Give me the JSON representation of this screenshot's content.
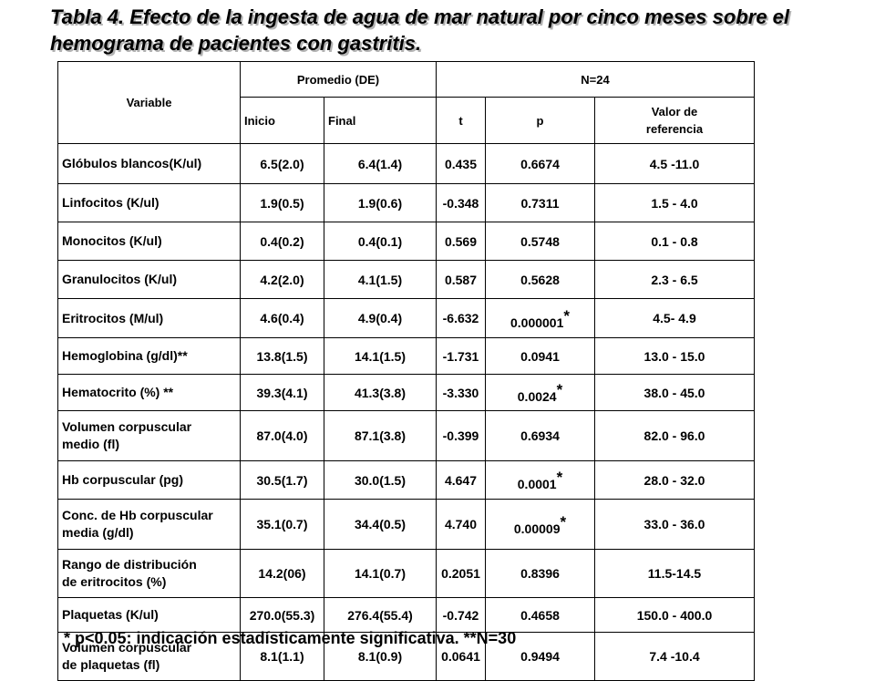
{
  "title": "Tabla 4. Efecto de la ingesta de agua de mar natural por cinco meses sobre el hemograma de pacientes con gastritis.",
  "headers": {
    "variable": "Variable",
    "promedio": "Promedio (DE)",
    "n": "N=24",
    "inicio": "Inicio",
    "final": "Final",
    "t": "t",
    "p": "p",
    "ref_line1": "Valor de",
    "ref_line2": "referencia"
  },
  "rows": [
    {
      "variable": [
        "Glóbulos blancos(K/ul)"
      ],
      "inicio": "6.5(2.0)",
      "final": "6.4(1.4)",
      "t": "0.435",
      "p": "0.6674",
      "star": "",
      "ref": "4.5 -11.0"
    },
    {
      "variable": [
        "Linfocitos (K/ul)"
      ],
      "inicio": "1.9(0.5)",
      "final": "1.9(0.6)",
      "t": "-0.348",
      "p": "0.7311",
      "star": "",
      "ref": "1.5 - 4.0"
    },
    {
      "variable": [
        "Monocitos (K/ul)"
      ],
      "inicio": "0.4(0.2)",
      "final": "0.4(0.1)",
      "t": "0.569",
      "p": "0.5748",
      "star": "",
      "ref": "0.1 - 0.8"
    },
    {
      "variable": [
        "Granulocitos (K/ul)"
      ],
      "inicio": "4.2(2.0)",
      "final": "4.1(1.5)",
      "t": "0.587",
      "p": "0.5628",
      "star": "",
      "ref": "2.3 - 6.5"
    },
    {
      "variable": [
        "Eritrocitos (M/ul)"
      ],
      "inicio": "4.6(0.4)",
      "final": "4.9(0.4)",
      "t": "-6.632",
      "p": "0.000001",
      "star": "*",
      "ref": "4.5- 4.9"
    },
    {
      "variable": [
        "Hemoglobina (g/dl)**"
      ],
      "inicio": "13.8(1.5)",
      "final": "14.1(1.5)",
      "t": "-1.731",
      "p": "0.0941",
      "star": "",
      "ref": "13.0 - 15.0"
    },
    {
      "variable": [
        "Hematocrito (%) **"
      ],
      "inicio": "39.3(4.1)",
      "final": "41.3(3.8)",
      "t": "-3.330",
      "p": "0.0024",
      "star": "*",
      "ref": "38.0 - 45.0"
    },
    {
      "variable": [
        "Volumen corpuscular",
        "medio (fl)"
      ],
      "inicio": "87.0(4.0)",
      "final": "87.1(3.8)",
      "t": "-0.399",
      "p": "0.6934",
      "star": "",
      "ref": "82.0 - 96.0"
    },
    {
      "variable": [
        "Hb corpuscular (pg)"
      ],
      "inicio": "30.5(1.7)",
      "final": "30.0(1.5)",
      "t": "4.647",
      "p": "0.0001",
      "star": "*",
      "ref": "28.0 - 32.0"
    },
    {
      "variable": [
        "Conc. de Hb corpuscular",
        "media (g/dl)"
      ],
      "inicio": "35.1(0.7)",
      "final": "34.4(0.5)",
      "t": "4.740",
      "p": "0.00009",
      "star": "*",
      "ref": "33.0 - 36.0"
    },
    {
      "variable": [
        "Rango de distribución",
        "de eritrocitos (%)"
      ],
      "inicio": "14.2(06)",
      "final": "14.1(0.7)",
      "t": "0.2051",
      "p": "0.8396",
      "star": "",
      "ref": "11.5-14.5"
    },
    {
      "variable": [
        "Plaquetas (K/ul)"
      ],
      "inicio": "270.0(55.3)",
      "final": "276.4(55.4)",
      "t": "-0.742",
      "p": "0.4658",
      "star": "",
      "ref": "150.0 - 400.0"
    },
    {
      "variable": [
        "Volumen corpuscular",
        "de plaquetas (fl)"
      ],
      "inicio": "8.1(1.1)",
      "final": "8.1(0.9)",
      "t": "0.0641",
      "p": "0.9494",
      "star": "",
      "ref": "7.4 -10.4"
    }
  ],
  "footnote": "* p<0.05: indicación estadísticamente significativa.   **N=30"
}
